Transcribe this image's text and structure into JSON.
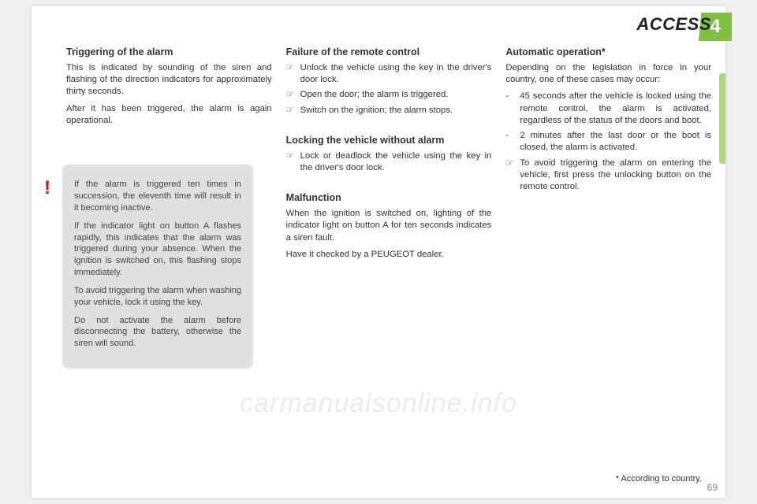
{
  "header": {
    "title": "ACCESS",
    "chapter": "4"
  },
  "col1": {
    "triggering": {
      "heading": "Triggering of the alarm",
      "p1": "This is indicated by sounding of the siren and flashing of the direction indicators for approximately thirty seconds.",
      "p2": "After it has been triggered, the alarm is again operational."
    },
    "warn": {
      "p1": "If the alarm is triggered ten times in succession, the eleventh time will result in it becoming inactive.",
      "p2": "If the indicator light on button A flashes rapidly, this indicates that the alarm was triggered during your absence. When the ignition is switched on, this flashing stops immediately.",
      "p3": "To avoid triggering the alarm when washing your vehicle, lock it using the key.",
      "p4": "Do not activate the alarm before disconnecting the battery, otherwise the siren will sound."
    }
  },
  "col2": {
    "failure": {
      "heading": "Failure of the remote control",
      "b1": "Unlock the vehicle using the key in the driver's door lock.",
      "b2": "Open the door; the alarm is triggered.",
      "b3": "Switch on the ignition; the alarm stops."
    },
    "locking": {
      "heading": "Locking the vehicle without alarm",
      "b1": "Lock or deadlock the vehicle using the key in the driver's door lock."
    },
    "malfunction": {
      "heading": "Malfunction",
      "p1": "When the ignition is switched on, lighting of the indicator light on button A for ten seconds indicates a siren fault.",
      "p2": "Have it checked by a PEUGEOT dealer."
    }
  },
  "col3": {
    "auto": {
      "heading": "Automatic operation*",
      "intro": "Depending on the legislation in force in your country, one of these cases may occur:",
      "d1": "45 seconds after the vehicle is locked using the remote control, the alarm is activated, regardless of the status of the doors and boot.",
      "d2": "2 minutes after the last door or the boot is closed, the alarm is activated.",
      "b1": "To avoid triggering the alarm on entering the vehicle, first press the unlocking button on the remote control."
    }
  },
  "footnote": "* According to country.",
  "pagenum": "69",
  "watermark": "carmanualsonline.info",
  "marks": {
    "hand": "☞",
    "dash": "-"
  }
}
